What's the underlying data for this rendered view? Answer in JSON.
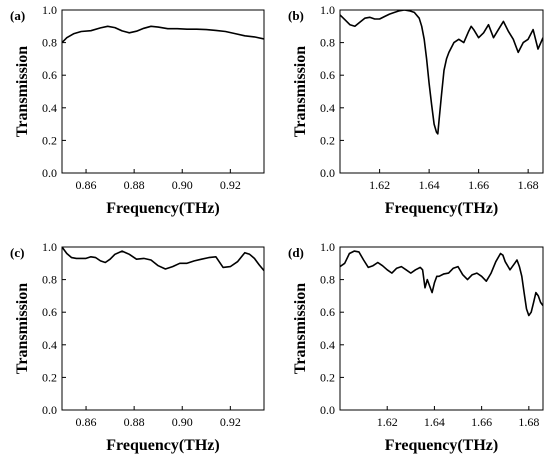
{
  "chart_data": [
    {
      "type": "line",
      "panel_label": "(a)",
      "xlabel": "Frequency(THz)",
      "ylabel": "Transmission",
      "xlim": [
        0.85,
        0.934
      ],
      "ylim": [
        0.0,
        1.0
      ],
      "xticks": [
        "0.86",
        "0.88",
        "0.90",
        "0.92"
      ],
      "yticks": [
        "0.0",
        "0.2",
        "0.4",
        "0.6",
        "0.8",
        "1.0"
      ],
      "series": [
        {
          "x": [
            0.85,
            0.852,
            0.855,
            0.858,
            0.862,
            0.866,
            0.869,
            0.872,
            0.875,
            0.878,
            0.881,
            0.884,
            0.887,
            0.89,
            0.894,
            0.898,
            0.902,
            0.906,
            0.91,
            0.914,
            0.918,
            0.922,
            0.926,
            0.93,
            0.934
          ],
          "y": [
            0.8,
            0.83,
            0.855,
            0.868,
            0.873,
            0.89,
            0.9,
            0.892,
            0.872,
            0.86,
            0.87,
            0.888,
            0.9,
            0.895,
            0.885,
            0.885,
            0.882,
            0.882,
            0.88,
            0.875,
            0.868,
            0.855,
            0.842,
            0.835,
            0.822
          ]
        }
      ]
    },
    {
      "type": "line",
      "panel_label": "(b)",
      "xlabel": "Frequency(THz)",
      "ylabel": "Transmission",
      "xlim": [
        1.604,
        1.686
      ],
      "ylim": [
        0.0,
        1.0
      ],
      "xticks": [
        "1.62",
        "1.64",
        "1.66",
        "1.68"
      ],
      "yticks": [
        "0.0",
        "0.2",
        "0.4",
        "0.6",
        "0.8",
        "1.0"
      ],
      "series": [
        {
          "x": [
            1.604,
            1.606,
            1.608,
            1.61,
            1.612,
            1.614,
            1.616,
            1.618,
            1.62,
            1.622,
            1.624,
            1.626,
            1.628,
            1.63,
            1.632,
            1.634,
            1.636,
            1.637,
            1.638,
            1.639,
            1.64,
            1.641,
            1.642,
            1.643,
            1.6435,
            1.644,
            1.645,
            1.646,
            1.647,
            1.648,
            1.65,
            1.652,
            1.654,
            1.656,
            1.657,
            1.658,
            1.66,
            1.662,
            1.664,
            1.666,
            1.668,
            1.67,
            1.672,
            1.674,
            1.676,
            1.678,
            1.68,
            1.682,
            1.684,
            1.686
          ],
          "y": [
            0.97,
            0.94,
            0.91,
            0.9,
            0.925,
            0.95,
            0.955,
            0.945,
            0.945,
            0.96,
            0.975,
            0.985,
            0.995,
            1.0,
            0.995,
            0.985,
            0.95,
            0.9,
            0.82,
            0.7,
            0.55,
            0.42,
            0.3,
            0.25,
            0.24,
            0.32,
            0.48,
            0.63,
            0.7,
            0.74,
            0.8,
            0.82,
            0.8,
            0.87,
            0.9,
            0.88,
            0.83,
            0.86,
            0.91,
            0.83,
            0.88,
            0.93,
            0.87,
            0.82,
            0.74,
            0.8,
            0.82,
            0.88,
            0.76,
            0.83
          ]
        }
      ]
    },
    {
      "type": "line",
      "panel_label": "(c)",
      "xlabel": "Frequency(THz)",
      "ylabel": "Transmission",
      "xlim": [
        0.85,
        0.934
      ],
      "ylim": [
        0.0,
        1.0
      ],
      "xticks": [
        "0.86",
        "0.88",
        "0.90",
        "0.92"
      ],
      "yticks": [
        "0.0",
        "0.2",
        "0.4",
        "0.6",
        "0.8",
        "1.0"
      ],
      "series": [
        {
          "x": [
            0.85,
            0.852,
            0.854,
            0.856,
            0.858,
            0.86,
            0.862,
            0.864,
            0.866,
            0.868,
            0.87,
            0.872,
            0.875,
            0.878,
            0.881,
            0.884,
            0.887,
            0.89,
            0.893,
            0.896,
            0.899,
            0.902,
            0.905,
            0.908,
            0.911,
            0.914,
            0.917,
            0.92,
            0.923,
            0.926,
            0.928,
            0.93,
            0.932,
            0.934
          ],
          "y": [
            1.0,
            0.96,
            0.935,
            0.93,
            0.93,
            0.93,
            0.94,
            0.935,
            0.915,
            0.905,
            0.925,
            0.955,
            0.975,
            0.955,
            0.925,
            0.93,
            0.92,
            0.885,
            0.865,
            0.88,
            0.9,
            0.9,
            0.915,
            0.925,
            0.935,
            0.94,
            0.875,
            0.88,
            0.91,
            0.965,
            0.955,
            0.93,
            0.89,
            0.855
          ]
        }
      ]
    },
    {
      "type": "line",
      "panel_label": "(d)",
      "xlabel": "Frequency(THz)",
      "ylabel": "Transmission",
      "xlim": [
        1.6,
        1.686
      ],
      "ylim": [
        0.0,
        1.0
      ],
      "xticks": [
        "1.62",
        "1.64",
        "1.66",
        "1.68"
      ],
      "yticks": [
        "0.0",
        "0.2",
        "0.4",
        "0.6",
        "0.8",
        "1.0"
      ],
      "series": [
        {
          "x": [
            1.6,
            1.602,
            1.604,
            1.606,
            1.608,
            1.61,
            1.612,
            1.614,
            1.616,
            1.618,
            1.62,
            1.622,
            1.624,
            1.626,
            1.628,
            1.63,
            1.632,
            1.634,
            1.635,
            1.636,
            1.637,
            1.638,
            1.639,
            1.64,
            1.641,
            1.642,
            1.644,
            1.646,
            1.648,
            1.65,
            1.652,
            1.654,
            1.656,
            1.658,
            1.66,
            1.662,
            1.664,
            1.666,
            1.668,
            1.669,
            1.67,
            1.672,
            1.674,
            1.675,
            1.676,
            1.677,
            1.678,
            1.679,
            1.68,
            1.681,
            1.682,
            1.683,
            1.684,
            1.685,
            1.686
          ],
          "y": [
            0.88,
            0.9,
            0.96,
            0.975,
            0.97,
            0.92,
            0.875,
            0.885,
            0.905,
            0.885,
            0.86,
            0.84,
            0.87,
            0.88,
            0.86,
            0.84,
            0.86,
            0.875,
            0.86,
            0.75,
            0.8,
            0.76,
            0.72,
            0.78,
            0.82,
            0.82,
            0.835,
            0.84,
            0.87,
            0.88,
            0.83,
            0.8,
            0.83,
            0.84,
            0.82,
            0.79,
            0.84,
            0.91,
            0.96,
            0.95,
            0.91,
            0.86,
            0.9,
            0.92,
            0.88,
            0.82,
            0.72,
            0.62,
            0.58,
            0.6,
            0.66,
            0.72,
            0.7,
            0.66,
            0.64
          ]
        }
      ]
    }
  ]
}
